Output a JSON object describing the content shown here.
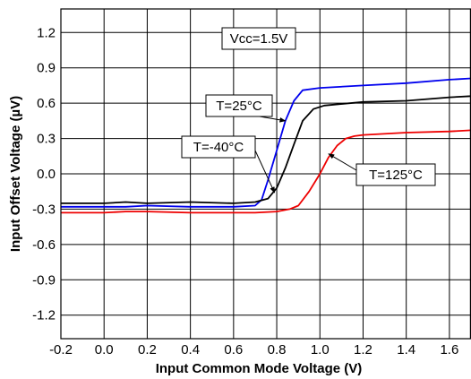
{
  "chart_data": {
    "type": "line",
    "title": "",
    "xlabel": "Input Common Mode Voltage (V)",
    "ylabel": "Input Offset Voltage (µV)",
    "xlim": [
      -0.2,
      1.7
    ],
    "ylim": [
      -1.4,
      1.4
    ],
    "grid": true,
    "xticks": [
      {
        "value": -0.2,
        "label": "-0.2"
      },
      {
        "value": 0.0,
        "label": "0.0"
      },
      {
        "value": 0.2,
        "label": "0.2"
      },
      {
        "value": 0.4,
        "label": "0.4"
      },
      {
        "value": 0.6,
        "label": "0.6"
      },
      {
        "value": 0.8,
        "label": "0.8"
      },
      {
        "value": 1.0,
        "label": "1.0"
      },
      {
        "value": 1.2,
        "label": "1.2"
      },
      {
        "value": 1.4,
        "label": "1.4"
      },
      {
        "value": 1.6,
        "label": "1.6"
      }
    ],
    "yticks": [
      {
        "value": 1.2,
        "label": "1.2"
      },
      {
        "value": 0.9,
        "label": "0.9"
      },
      {
        "value": 0.6,
        "label": "0.6"
      },
      {
        "value": 0.3,
        "label": "0.3"
      },
      {
        "value": 0.0,
        "label": "0.0"
      },
      {
        "value": -0.3,
        "label": "-0.3"
      },
      {
        "value": -0.6,
        "label": "-0.6"
      },
      {
        "value": -0.9,
        "label": "-0.9"
      },
      {
        "value": -1.2,
        "label": "-1.2"
      }
    ],
    "condition_label": "Vcc=1.5V",
    "series": [
      {
        "name": "T=25°C",
        "color": "#0000ee",
        "points": [
          [
            -0.2,
            -0.28
          ],
          [
            0.0,
            -0.28
          ],
          [
            0.1,
            -0.28
          ],
          [
            0.2,
            -0.27
          ],
          [
            0.4,
            -0.28
          ],
          [
            0.6,
            -0.28
          ],
          [
            0.7,
            -0.27
          ],
          [
            0.73,
            -0.22
          ],
          [
            0.76,
            -0.05
          ],
          [
            0.8,
            0.2
          ],
          [
            0.84,
            0.45
          ],
          [
            0.88,
            0.62
          ],
          [
            0.92,
            0.71
          ],
          [
            1.0,
            0.73
          ],
          [
            1.2,
            0.75
          ],
          [
            1.4,
            0.77
          ],
          [
            1.6,
            0.8
          ],
          [
            1.7,
            0.81
          ]
        ]
      },
      {
        "name": "T=-40°C",
        "color": "#000000",
        "points": [
          [
            -0.2,
            -0.25
          ],
          [
            0.0,
            -0.25
          ],
          [
            0.1,
            -0.24
          ],
          [
            0.2,
            -0.25
          ],
          [
            0.4,
            -0.24
          ],
          [
            0.6,
            -0.25
          ],
          [
            0.7,
            -0.24
          ],
          [
            0.76,
            -0.21
          ],
          [
            0.8,
            -0.12
          ],
          [
            0.84,
            0.05
          ],
          [
            0.88,
            0.25
          ],
          [
            0.92,
            0.45
          ],
          [
            0.97,
            0.55
          ],
          [
            1.02,
            0.58
          ],
          [
            1.2,
            0.61
          ],
          [
            1.4,
            0.62
          ],
          [
            1.6,
            0.65
          ],
          [
            1.7,
            0.66
          ]
        ]
      },
      {
        "name": "T=125°C",
        "color": "#ee0000",
        "points": [
          [
            -0.2,
            -0.33
          ],
          [
            0.0,
            -0.33
          ],
          [
            0.1,
            -0.32
          ],
          [
            0.2,
            -0.32
          ],
          [
            0.4,
            -0.33
          ],
          [
            0.6,
            -0.33
          ],
          [
            0.7,
            -0.33
          ],
          [
            0.8,
            -0.32
          ],
          [
            0.86,
            -0.3
          ],
          [
            0.9,
            -0.27
          ],
          [
            0.95,
            -0.15
          ],
          [
            1.0,
            0.0
          ],
          [
            1.04,
            0.14
          ],
          [
            1.08,
            0.24
          ],
          [
            1.12,
            0.3
          ],
          [
            1.16,
            0.32
          ],
          [
            1.2,
            0.33
          ],
          [
            1.4,
            0.35
          ],
          [
            1.6,
            0.36
          ],
          [
            1.7,
            0.37
          ]
        ]
      }
    ],
    "annotations": [
      {
        "text": "T=25°C",
        "arrow_to": [
          0.84,
          0.45
        ]
      },
      {
        "text": "T=-40°C",
        "arrow_to": [
          0.79,
          -0.16
        ]
      },
      {
        "text": "T=125°C",
        "arrow_to": [
          1.04,
          0.17
        ]
      }
    ]
  }
}
